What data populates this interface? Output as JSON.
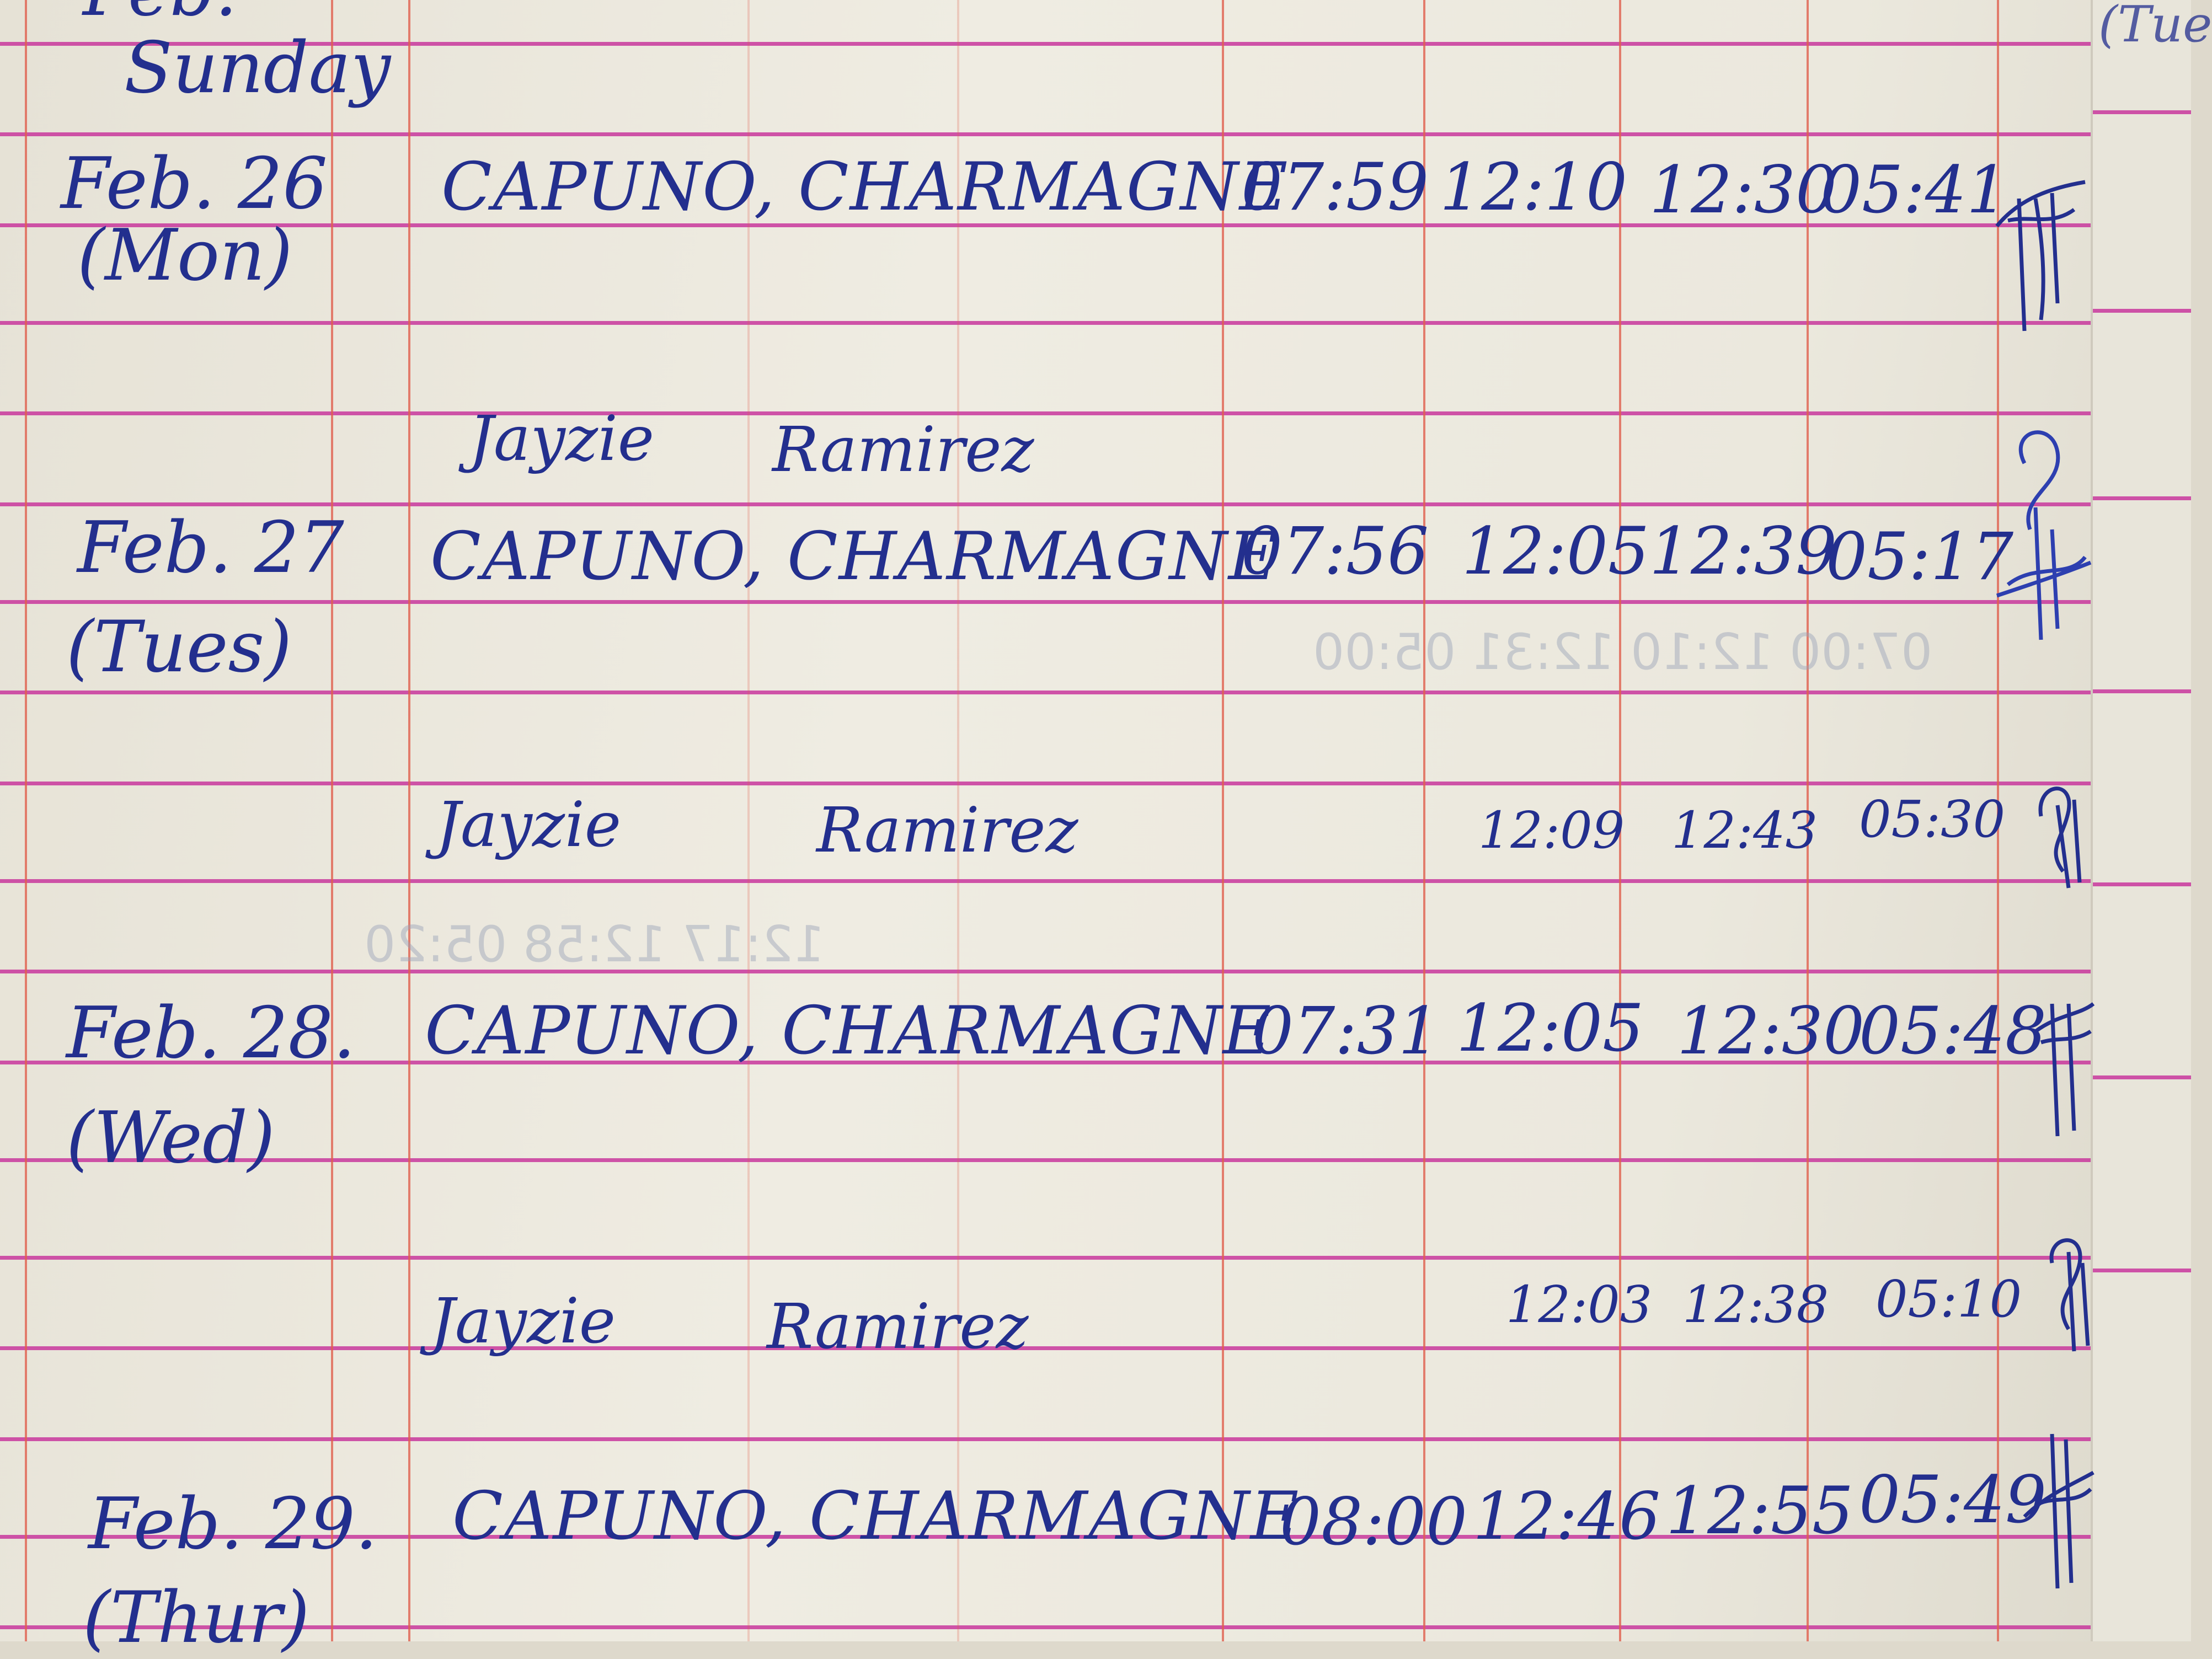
{
  "page": {
    "header_partial": "Feb.",
    "header_day": "Sunday",
    "right_page_partial": "(Tue"
  },
  "colors": {
    "ink": "#232f8e",
    "ruling_horizontal": "#c8379c",
    "ruling_vertical": "#e0604f",
    "paper": "#ece9de"
  },
  "entries": [
    {
      "date": "Feb. 26",
      "day": "(Mon)",
      "name": "CAPUNO, CHARMAGNE",
      "times": [
        "07:59",
        "12:10",
        "12:30",
        "05:41"
      ]
    },
    {
      "date": "Feb. 27",
      "day": "(Tues)",
      "name": "CAPUNO, CHARMAGNE",
      "times": [
        "07:56",
        "12:05",
        "12:39",
        "05:17"
      ]
    },
    {
      "date": "Feb. 28.",
      "day": "(Wed)",
      "name": "CAPUNO, CHARMAGNE",
      "times": [
        "07:31",
        "12:05",
        "12:30",
        "05:48"
      ]
    },
    {
      "date": "Feb. 29.",
      "day": "(Thur)",
      "name": "CAPUNO, CHARMAGNE",
      "times": [
        "08:00",
        "12:46",
        "12:55",
        "05:49"
      ]
    }
  ],
  "assistant_rows": [
    {
      "first": "Jayzie",
      "last": "Ramirez",
      "times": []
    },
    {
      "first": "Jayzie",
      "last": "Ramirez",
      "times": [
        "12:09",
        "12:43",
        "05:30"
      ]
    },
    {
      "first": "Jayzie",
      "last": "Ramirez",
      "times": [
        "12:03",
        "12:38",
        "05:10"
      ]
    }
  ]
}
